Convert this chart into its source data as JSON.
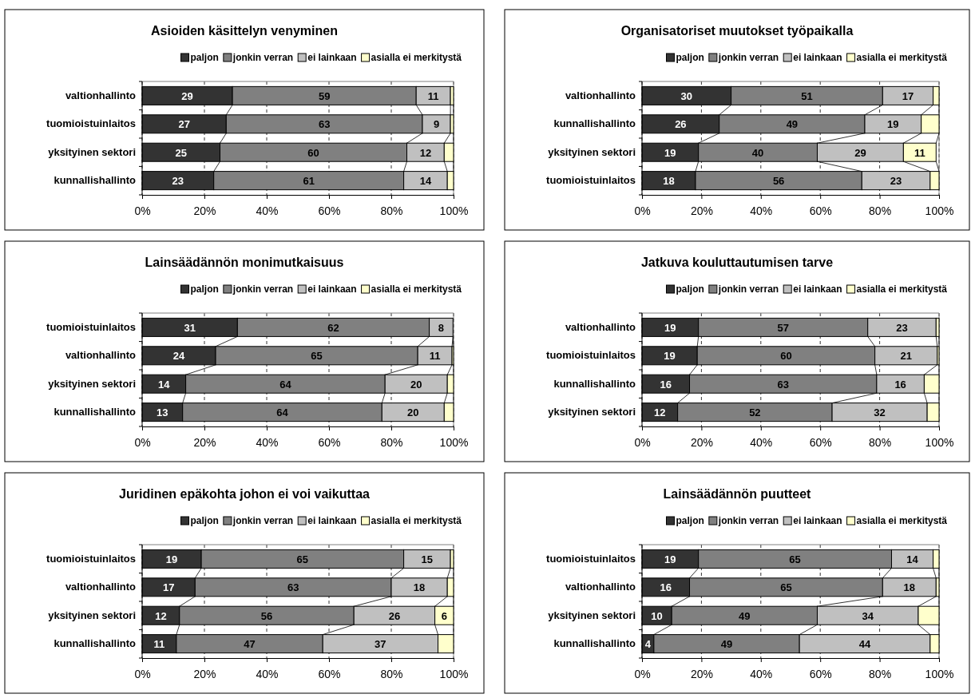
{
  "chart_data": [
    {
      "type": "bar",
      "orientation": "horizontal",
      "stacked": true,
      "title": "Asioiden käsittelyn venyminen",
      "categories": [
        "valtionhallinto",
        "tuomioistuinlaitos",
        "yksityinen sektori",
        "kunnallishallinto"
      ],
      "xlim": [
        0,
        100
      ],
      "xticks": [
        {
          "value": 0,
          "label": "0%"
        },
        {
          "value": 20,
          "label": "20%"
        },
        {
          "value": 40,
          "label": "40%"
        },
        {
          "value": 60,
          "label": "60%"
        },
        {
          "value": 80,
          "label": "80%"
        },
        {
          "value": 100,
          "label": "100%"
        }
      ],
      "grid": "x",
      "legend": "top",
      "series": [
        {
          "name": "paljon",
          "color": "#333333",
          "values": [
            29,
            27,
            25,
            23
          ],
          "value_labels": [
            "29",
            "27",
            "25",
            "23"
          ]
        },
        {
          "name": "jonkin verran",
          "color": "#808080",
          "values": [
            59,
            63,
            60,
            61
          ],
          "value_labels": [
            "59",
            "63",
            "60",
            "61"
          ]
        },
        {
          "name": "ei lainkaan",
          "color": "#c0c0c0",
          "values": [
            11,
            9,
            12,
            14
          ],
          "value_labels": [
            "11",
            "9",
            "12",
            "14"
          ]
        },
        {
          "name": "asialla ei merkitystä",
          "color": "#ffffcc",
          "values": [
            1,
            1,
            3,
            2
          ],
          "value_labels": [
            null,
            null,
            null,
            null
          ]
        }
      ]
    },
    {
      "type": "bar",
      "orientation": "horizontal",
      "stacked": true,
      "title": "Organisatoriset muutokset työpaikalla",
      "categories": [
        "valtionhallinto",
        "kunnallishallinto",
        "yksityinen sektori",
        "tuomioistuinlaitos"
      ],
      "xlim": [
        0,
        100
      ],
      "xticks": [
        {
          "value": 0,
          "label": "0%"
        },
        {
          "value": 20,
          "label": "20%"
        },
        {
          "value": 40,
          "label": "40%"
        },
        {
          "value": 60,
          "label": "60%"
        },
        {
          "value": 80,
          "label": "80%"
        },
        {
          "value": 100,
          "label": "100%"
        }
      ],
      "grid": "x",
      "legend": "top",
      "series": [
        {
          "name": "paljon",
          "color": "#333333",
          "values": [
            30,
            26,
            19,
            18
          ],
          "value_labels": [
            "30",
            "26",
            "19",
            "18"
          ]
        },
        {
          "name": "jonkin verran",
          "color": "#808080",
          "values": [
            51,
            49,
            40,
            56
          ],
          "value_labels": [
            "51",
            "49",
            "40",
            "56"
          ]
        },
        {
          "name": "ei lainkaan",
          "color": "#c0c0c0",
          "values": [
            17,
            19,
            29,
            23
          ],
          "value_labels": [
            "17",
            "19",
            "29",
            "23"
          ]
        },
        {
          "name": "asialla ei merkitystä",
          "color": "#ffffcc",
          "values": [
            2,
            6,
            11,
            3
          ],
          "value_labels": [
            null,
            null,
            "11",
            null
          ]
        }
      ]
    },
    {
      "type": "bar",
      "orientation": "horizontal",
      "stacked": true,
      "title": "Lainsäädännön monimutkaisuus",
      "categories": [
        "tuomioistuinlaitos",
        "valtionhallinto",
        "yksityinen sektori",
        "kunnallishallinto"
      ],
      "xlim": [
        0,
        100
      ],
      "xticks": [
        {
          "value": 0,
          "label": "0%"
        },
        {
          "value": 20,
          "label": "20%"
        },
        {
          "value": 40,
          "label": "40%"
        },
        {
          "value": 60,
          "label": "60%"
        },
        {
          "value": 80,
          "label": "80%"
        },
        {
          "value": 100,
          "label": "100%"
        }
      ],
      "grid": "x",
      "legend": "top",
      "series": [
        {
          "name": "paljon",
          "color": "#333333",
          "values": [
            30.6,
            23.6,
            14,
            13
          ],
          "value_labels": [
            "31",
            "24",
            "14",
            "13"
          ]
        },
        {
          "name": "jonkin verran",
          "color": "#808080",
          "values": [
            61.6,
            64.9,
            64,
            64
          ],
          "value_labels": [
            "62",
            "65",
            "64",
            "64"
          ]
        },
        {
          "name": "ei lainkaan",
          "color": "#c0c0c0",
          "values": [
            7.6,
            11,
            20,
            20
          ],
          "value_labels": [
            "8",
            "11",
            "20",
            "20"
          ]
        },
        {
          "name": "asialla ei merkitystä",
          "color": "#ffffcc",
          "values": [
            0,
            0.5,
            2,
            3
          ],
          "value_labels": [
            null,
            null,
            null,
            null
          ]
        }
      ]
    },
    {
      "type": "bar",
      "orientation": "horizontal",
      "stacked": true,
      "title": "Jatkuva kouluttautumisen tarve",
      "categories": [
        "valtionhallinto",
        "tuomioistuinlaitos",
        "kunnallishallinto",
        "yksityinen sektori"
      ],
      "xlim": [
        0,
        100
      ],
      "xticks": [
        {
          "value": 0,
          "label": "0%"
        },
        {
          "value": 20,
          "label": "20%"
        },
        {
          "value": 40,
          "label": "40%"
        },
        {
          "value": 60,
          "label": "60%"
        },
        {
          "value": 80,
          "label": "80%"
        },
        {
          "value": 100,
          "label": "100%"
        }
      ],
      "grid": "x",
      "legend": "top",
      "series": [
        {
          "name": "paljon",
          "color": "#333333",
          "values": [
            19,
            18.6,
            16,
            12
          ],
          "value_labels": [
            "19",
            "19",
            "16",
            "12"
          ]
        },
        {
          "name": "jonkin verran",
          "color": "#808080",
          "values": [
            57,
            59.8,
            63,
            52
          ],
          "value_labels": [
            "57",
            "60",
            "63",
            "52"
          ]
        },
        {
          "name": "ei lainkaan",
          "color": "#c0c0c0",
          "values": [
            23,
            21,
            16,
            32
          ],
          "value_labels": [
            "23",
            "21",
            "16",
            "32"
          ]
        },
        {
          "name": "asialla ei merkitystä",
          "color": "#ffffcc",
          "values": [
            1,
            0.6,
            5,
            4
          ],
          "value_labels": [
            null,
            null,
            null,
            null
          ]
        }
      ]
    },
    {
      "type": "bar",
      "orientation": "horizontal",
      "stacked": true,
      "title": "Juridinen epäkohta johon ei voi vaikuttaa",
      "categories": [
        "tuomioistuinlaitos",
        "valtionhallinto",
        "yksityinen sektori",
        "kunnallishallinto"
      ],
      "xlim": [
        0,
        100
      ],
      "xticks": [
        {
          "value": 0,
          "label": "0%"
        },
        {
          "value": 20,
          "label": "20%"
        },
        {
          "value": 40,
          "label": "40%"
        },
        {
          "value": 60,
          "label": "60%"
        },
        {
          "value": 80,
          "label": "80%"
        },
        {
          "value": 100,
          "label": "100%"
        }
      ],
      "grid": "x",
      "legend": "top",
      "series": [
        {
          "name": "paljon",
          "color": "#333333",
          "values": [
            19,
            17,
            12,
            11
          ],
          "value_labels": [
            "19",
            "17",
            "12",
            "11"
          ]
        },
        {
          "name": "jonkin verran",
          "color": "#808080",
          "values": [
            65,
            63,
            56,
            47
          ],
          "value_labels": [
            "65",
            "63",
            "56",
            "47"
          ]
        },
        {
          "name": "ei lainkaan",
          "color": "#c0c0c0",
          "values": [
            15,
            18,
            26,
            37
          ],
          "value_labels": [
            "15",
            "18",
            "26",
            "37"
          ]
        },
        {
          "name": "asialla ei merkitystä",
          "color": "#ffffcc",
          "values": [
            1,
            2,
            6,
            5
          ],
          "value_labels": [
            null,
            null,
            "6",
            null
          ]
        }
      ]
    },
    {
      "type": "bar",
      "orientation": "horizontal",
      "stacked": true,
      "title": "Lainsäädännön puutteet",
      "categories": [
        "tuomioistuinlaitos",
        "valtionhallinto",
        "yksityinen sektori",
        "kunnallishallinto"
      ],
      "xlim": [
        0,
        100
      ],
      "xticks": [
        {
          "value": 0,
          "label": "0%"
        },
        {
          "value": 20,
          "label": "20%"
        },
        {
          "value": 40,
          "label": "40%"
        },
        {
          "value": 60,
          "label": "60%"
        },
        {
          "value": 80,
          "label": "80%"
        },
        {
          "value": 100,
          "label": "100%"
        }
      ],
      "grid": "x",
      "legend": "top",
      "series": [
        {
          "name": "paljon",
          "color": "#333333",
          "values": [
            19,
            16,
            10,
            4
          ],
          "value_labels": [
            "19",
            "16",
            "10",
            "4"
          ]
        },
        {
          "name": "jonkin verran",
          "color": "#808080",
          "values": [
            65,
            65,
            49,
            49
          ],
          "value_labels": [
            "65",
            "65",
            "49",
            "49"
          ]
        },
        {
          "name": "ei lainkaan",
          "color": "#c0c0c0",
          "values": [
            14,
            18,
            34,
            44
          ],
          "value_labels": [
            "14",
            "18",
            "34",
            "44"
          ]
        },
        {
          "name": "asialla ei merkitystä",
          "color": "#ffffcc",
          "values": [
            2,
            1,
            7,
            3
          ],
          "value_labels": [
            null,
            null,
            null,
            null
          ]
        }
      ]
    }
  ]
}
